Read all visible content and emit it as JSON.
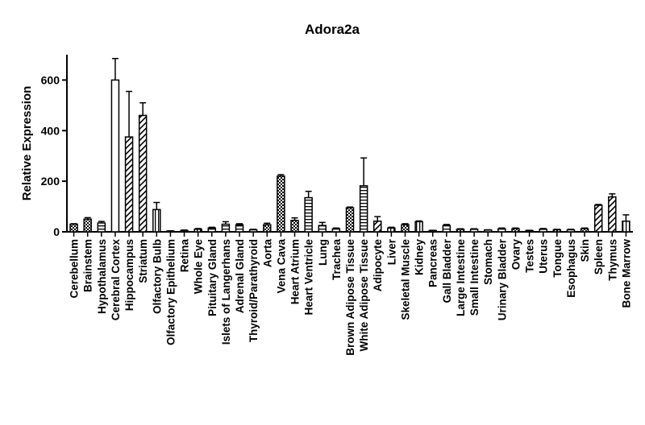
{
  "chart_data": {
    "type": "bar",
    "title": "Adora2a",
    "xlabel": "",
    "ylabel": "Relative Expression",
    "ylim": [
      0,
      700
    ],
    "yticks": [
      0,
      200,
      400,
      600
    ],
    "grid": false,
    "legend": "none",
    "categories": [
      "Cerebellum",
      "Brainstem",
      "Hypothalamus",
      "Cerebral Cortex",
      "Hippocampus",
      "Striatum",
      "Olfactory Bulb",
      "Olfactory Epithelium",
      "Retina",
      "Whole Eye",
      "Pituitary Gland",
      "Islets of Langerhans",
      "Adrenal Gland",
      "Thyroid/Parathyroid",
      "Aorta",
      "Vena Cava",
      "Heart Atrium",
      "Heart Ventricle",
      "Lung",
      "Trachea",
      "Brown Adipose Tissue",
      "White Adipose Tissue",
      "Adipocyte",
      "Liver",
      "Skeletal Muscle",
      "Kidney",
      "Pancreas",
      "Gall Bladder",
      "Large Intestine",
      "Small Intestine",
      "Stomach",
      "Urinary Bladder",
      "Ovary",
      "Testes",
      "Uterus",
      "Tongue",
      "Esophagus",
      "Skin",
      "Spleen",
      "Thymus",
      "Bone Marrow"
    ],
    "values": [
      30,
      50,
      35,
      600,
      375,
      460,
      88,
      3,
      5,
      10,
      15,
      30,
      28,
      8,
      28,
      220,
      45,
      135,
      25,
      12,
      95,
      182,
      42,
      15,
      28,
      40,
      5,
      25,
      10,
      10,
      7,
      12,
      12,
      5,
      10,
      8,
      8,
      12,
      105,
      138,
      42
    ],
    "errors": [
      2,
      6,
      6,
      85,
      180,
      50,
      28,
      1,
      2,
      3,
      3,
      10,
      4,
      2,
      6,
      6,
      10,
      25,
      12,
      3,
      3,
      110,
      18,
      3,
      4,
      3,
      1,
      4,
      2,
      2,
      1,
      3,
      3,
      1,
      3,
      2,
      2,
      3,
      3,
      12,
      25
    ],
    "patterns": [
      "check",
      "check",
      "hstripe",
      "empty",
      "diag",
      "diag",
      "vstripe",
      "check",
      "check",
      "vstripe",
      "hstripe",
      "hstripe",
      "hstripe",
      "hstripe",
      "check",
      "check",
      "check",
      "hstripe",
      "hstripe",
      "hstripe",
      "check",
      "hstripe",
      "diag",
      "vstripe",
      "check",
      "vstripe",
      "hstripe",
      "hstripe",
      "check",
      "hstripe",
      "hstripe",
      "hstripe",
      "check",
      "vstripe",
      "hstripe",
      "check",
      "hstripe",
      "check",
      "diag",
      "diag",
      "vstripe"
    ]
  }
}
